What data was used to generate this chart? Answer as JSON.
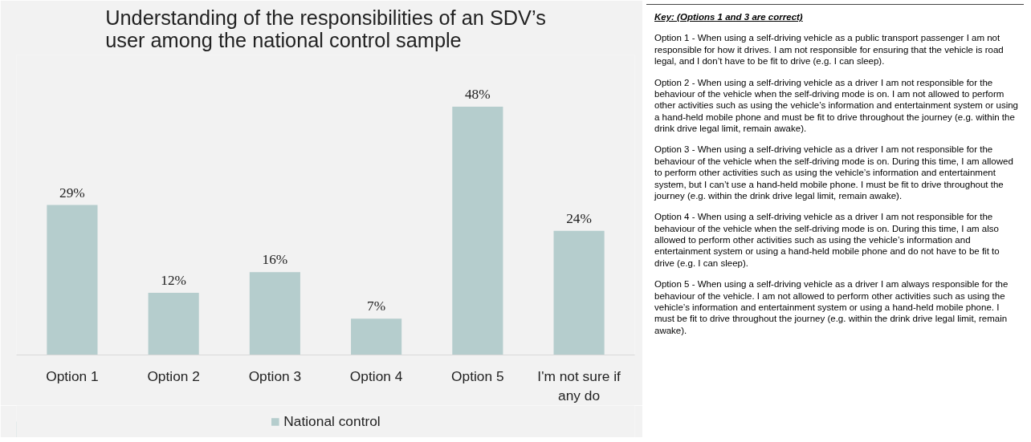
{
  "chart_data": {
    "type": "bar",
    "title": "Understanding of the responsibilities of an SDV’s\nuser among the national control sample",
    "categories": [
      "Option 1",
      "Option 2",
      "Option 3",
      "Option 4",
      "Option 5",
      "I'm not sure if\nany do"
    ],
    "series": [
      {
        "name": "National control",
        "color": "#b5cdcd",
        "values": [
          29,
          12,
          16,
          7,
          48,
          24
        ],
        "value_labels": [
          "29%",
          "12%",
          "16%",
          "7%",
          "48%",
          "24%"
        ]
      }
    ],
    "ylim": [
      0,
      58
    ],
    "tick_labels": "x",
    "grid": false,
    "legend": "bottom",
    "annotations": [
      "Key: (Options 1 and 3 are correct)",
      "Option 1 - When using a self-driving vehicle as a public transport passenger I am not responsible for how it drives. I am not responsible for ensuring that the vehicle is road legal, and I don’t have to be fit to drive (e.g. I can sleep).",
      "Option 2 - When using a self-driving vehicle as a driver I am not responsible for the behaviour of the vehicle when the self-driving mode is on. I am not allowed to perform other activities such as using the vehicle’s information and entertainment system or using a hand-held mobile phone and must be fit to drive throughout the journey (e.g. within the drink drive legal limit, remain awake).",
      "Option 3 - When using a self-driving vehicle as a driver I am not responsible for the behaviour of the vehicle when the self-driving mode is on. During this time, I am allowed to perform other activities such as using the vehicle’s information and entertainment system, but I can’t use a hand-held mobile phone. I must be fit to drive throughout the journey (e.g. within the drink drive legal limit, remain awake).",
      "Option 4 - When using a self-driving vehicle as a driver I am not responsible for the behaviour of the vehicle when the self-driving mode is on. During this time, I am also allowed to perform other activities such as using the vehicle’s information and entertainment system or using a hand-held mobile phone and do not have to be fit to drive (e.g. I can sleep).",
      "Option 5 - When using a self-driving vehicle as a driver I am always responsible for the behaviour of the vehicle. I am not allowed to perform other activities such as using the vehicle’s information and entertainment system or using a hand-held mobile phone. I must be fit to drive throughout the journey (e.g. within the drink drive legal limit, remain awake)."
    ]
  }
}
